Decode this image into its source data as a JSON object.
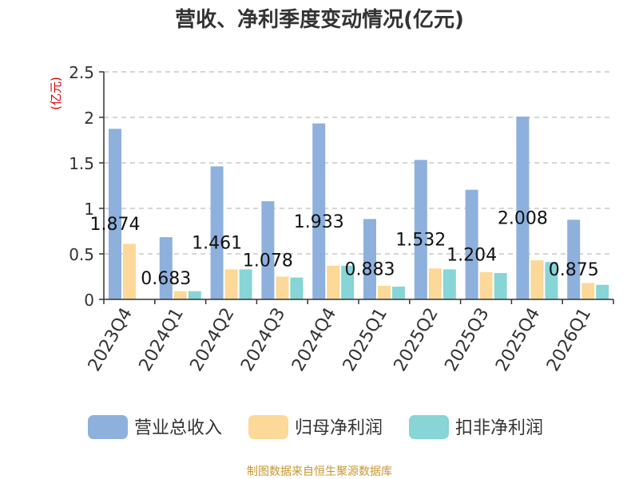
{
  "chart_data": {
    "type": "bar",
    "title": "营收、净利季度变动情况(亿元)",
    "ylabel": "(亿元)",
    "xlabel": "",
    "ylim": [
      0,
      2.5
    ],
    "yticks": [
      {
        "value": 0,
        "label": "0"
      },
      {
        "value": 0.5,
        "label": "0.5"
      },
      {
        "value": 1,
        "label": "1"
      },
      {
        "value": 1.5,
        "label": "1.5"
      },
      {
        "value": 2,
        "label": "2"
      },
      {
        "value": 2.5,
        "label": "2.5"
      }
    ],
    "grid": true,
    "legend_position": "bottom",
    "categories": [
      "2023Q4",
      "2024Q1",
      "2024Q2",
      "2024Q3",
      "2024Q4",
      "2025Q1",
      "2025Q2",
      "2025Q3",
      "2025Q4",
      "2026Q1"
    ],
    "series": [
      {
        "name": "营业总收入",
        "color": "#8eb0dd",
        "values": [
          1.874,
          0.683,
          1.461,
          1.078,
          1.933,
          0.883,
          1.532,
          1.204,
          2.008,
          0.875
        ],
        "labels": [
          "1.874",
          "0.683",
          "1.461",
          "1.078",
          "1.933",
          "0.883",
          "1.532",
          "1.204",
          "2.008",
          "0.875"
        ]
      },
      {
        "name": "归母净利润",
        "color": "#fcd899",
        "values": [
          0.61,
          0.09,
          0.33,
          0.25,
          0.37,
          0.15,
          0.34,
          0.3,
          0.43,
          0.18
        ]
      },
      {
        "name": "扣非净利润",
        "color": "#87d5d6",
        "values": [
          0.0,
          0.09,
          0.33,
          0.24,
          0.37,
          0.14,
          0.33,
          0.29,
          0.41,
          0.16
        ]
      }
    ],
    "source": "制图数据来自恒生聚源数据库",
    "colors": {
      "title": "#333333",
      "ylabel": "#dd0000",
      "source": "#c8962c",
      "axis": "#333333",
      "grid": "#c8c8c8"
    }
  }
}
